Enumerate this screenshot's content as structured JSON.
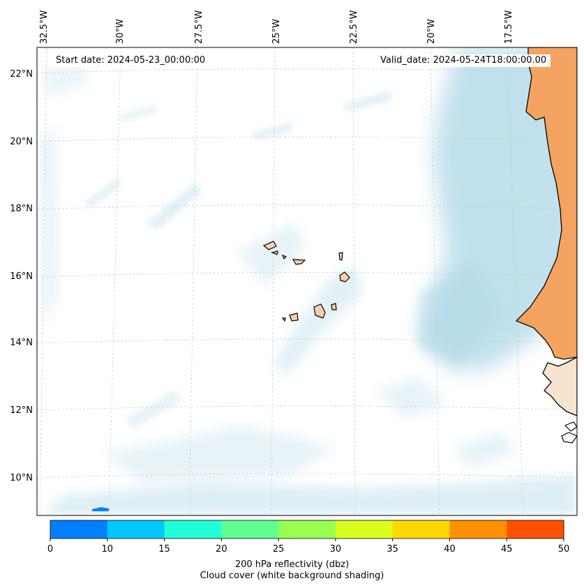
{
  "header": {
    "start_date": "Start date: 2024-05-23_00:00:00",
    "valid_date": "Valid_date: 2024-05-24T18:00:00.00"
  },
  "map": {
    "lon_labels": [
      "32.5°W",
      "30°W",
      "27.5°W",
      "25°W",
      "22.5°W",
      "20°W",
      "17.5°W"
    ],
    "lat_labels": [
      "22°N",
      "20°N",
      "18°N",
      "16°N",
      "14°N",
      "12°N",
      "10°N"
    ],
    "colors": {
      "land": "#f4a460",
      "islands": "#f6cfae",
      "cloud": "#add8e6",
      "coastline": "#000000",
      "gridline": "#cccccc"
    }
  },
  "colorbar": {
    "ticks": [
      "0",
      "10",
      "15",
      "20",
      "25",
      "30",
      "35",
      "40",
      "45",
      "50"
    ],
    "colors": [
      "#0080ff",
      "#00c8ff",
      "#20ffd8",
      "#60ff90",
      "#98ff50",
      "#d8ff20",
      "#ffd800",
      "#ff9000",
      "#ff5000"
    ],
    "label_line1": "200 hPa reflectivity (dbz)",
    "label_line2": "Cloud cover (white background shading)"
  }
}
